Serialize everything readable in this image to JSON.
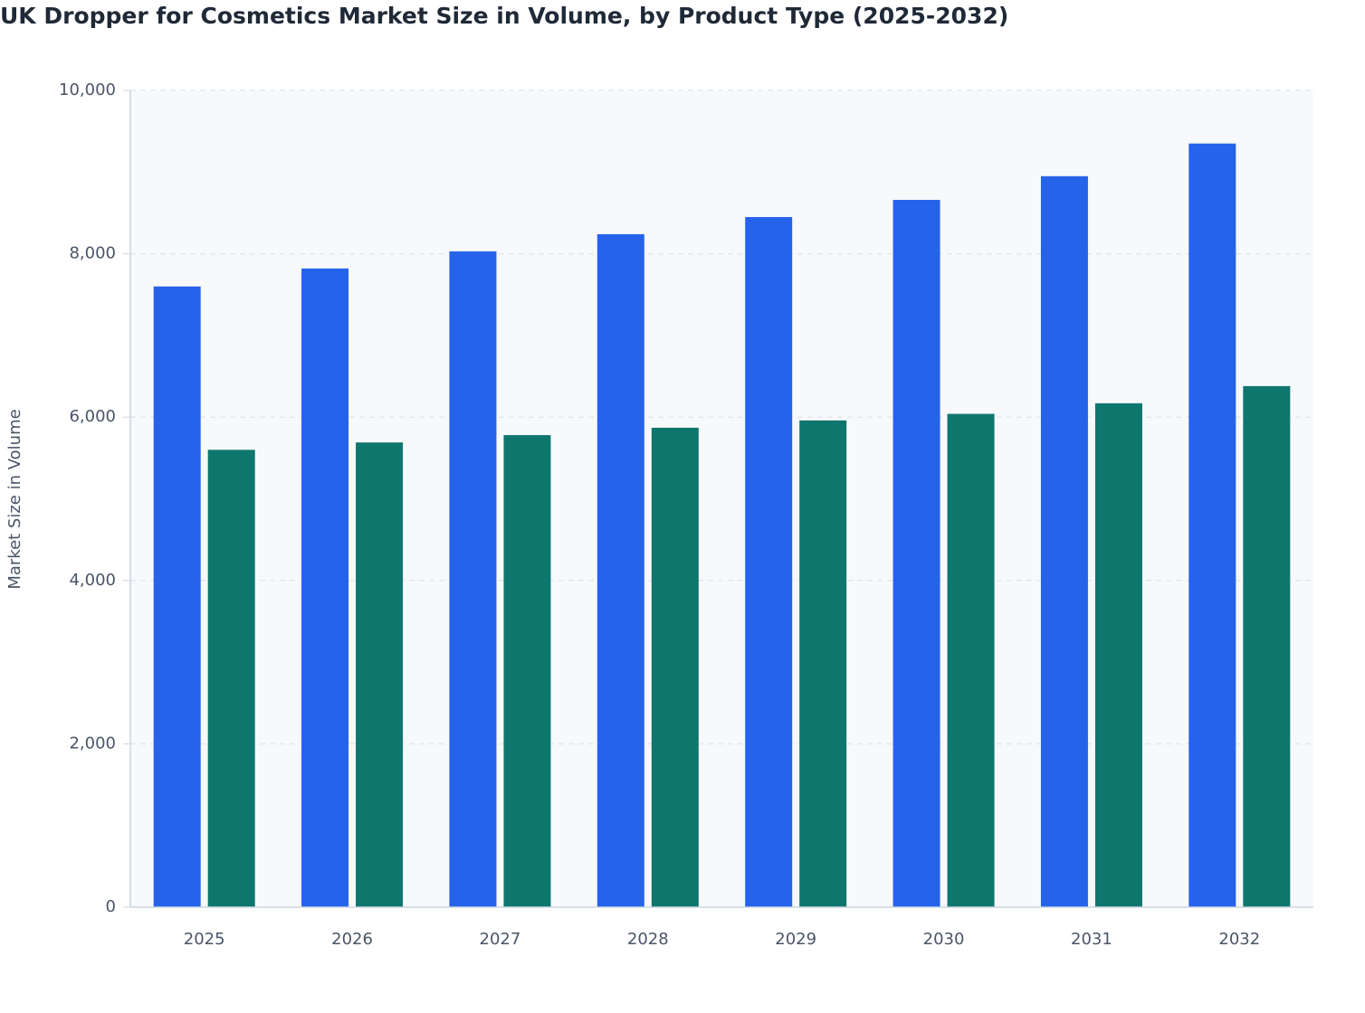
{
  "chart_data": {
    "type": "bar",
    "title": "UK Dropper for Cosmetics Market Size in Volume, by Product Type (2025-2032)",
    "y_label": "Market Size in Volume",
    "categories": [
      "2025",
      "2026",
      "2027",
      "2028",
      "2029",
      "2030",
      "2031",
      "2032"
    ],
    "series": [
      {
        "color": "#2563eb",
        "values": [
          7600,
          7820,
          8030,
          8240,
          8450,
          8660,
          8950,
          9350
        ]
      },
      {
        "color": "#0f766e",
        "values": [
          5600,
          5690,
          5780,
          5870,
          5960,
          6040,
          6170,
          6380
        ]
      }
    ],
    "ylim": [
      0,
      10000
    ],
    "yticks": [
      0,
      {
        "value": 2000,
        "label": "2,000"
      },
      {
        "value": 4000,
        "label": "4,000"
      },
      {
        "value": 6000,
        "label": "6,000"
      },
      {
        "value": 8000,
        "label": "8,000"
      },
      {
        "value": 10000,
        "label": "10,000"
      }
    ],
    "grid": true
  }
}
